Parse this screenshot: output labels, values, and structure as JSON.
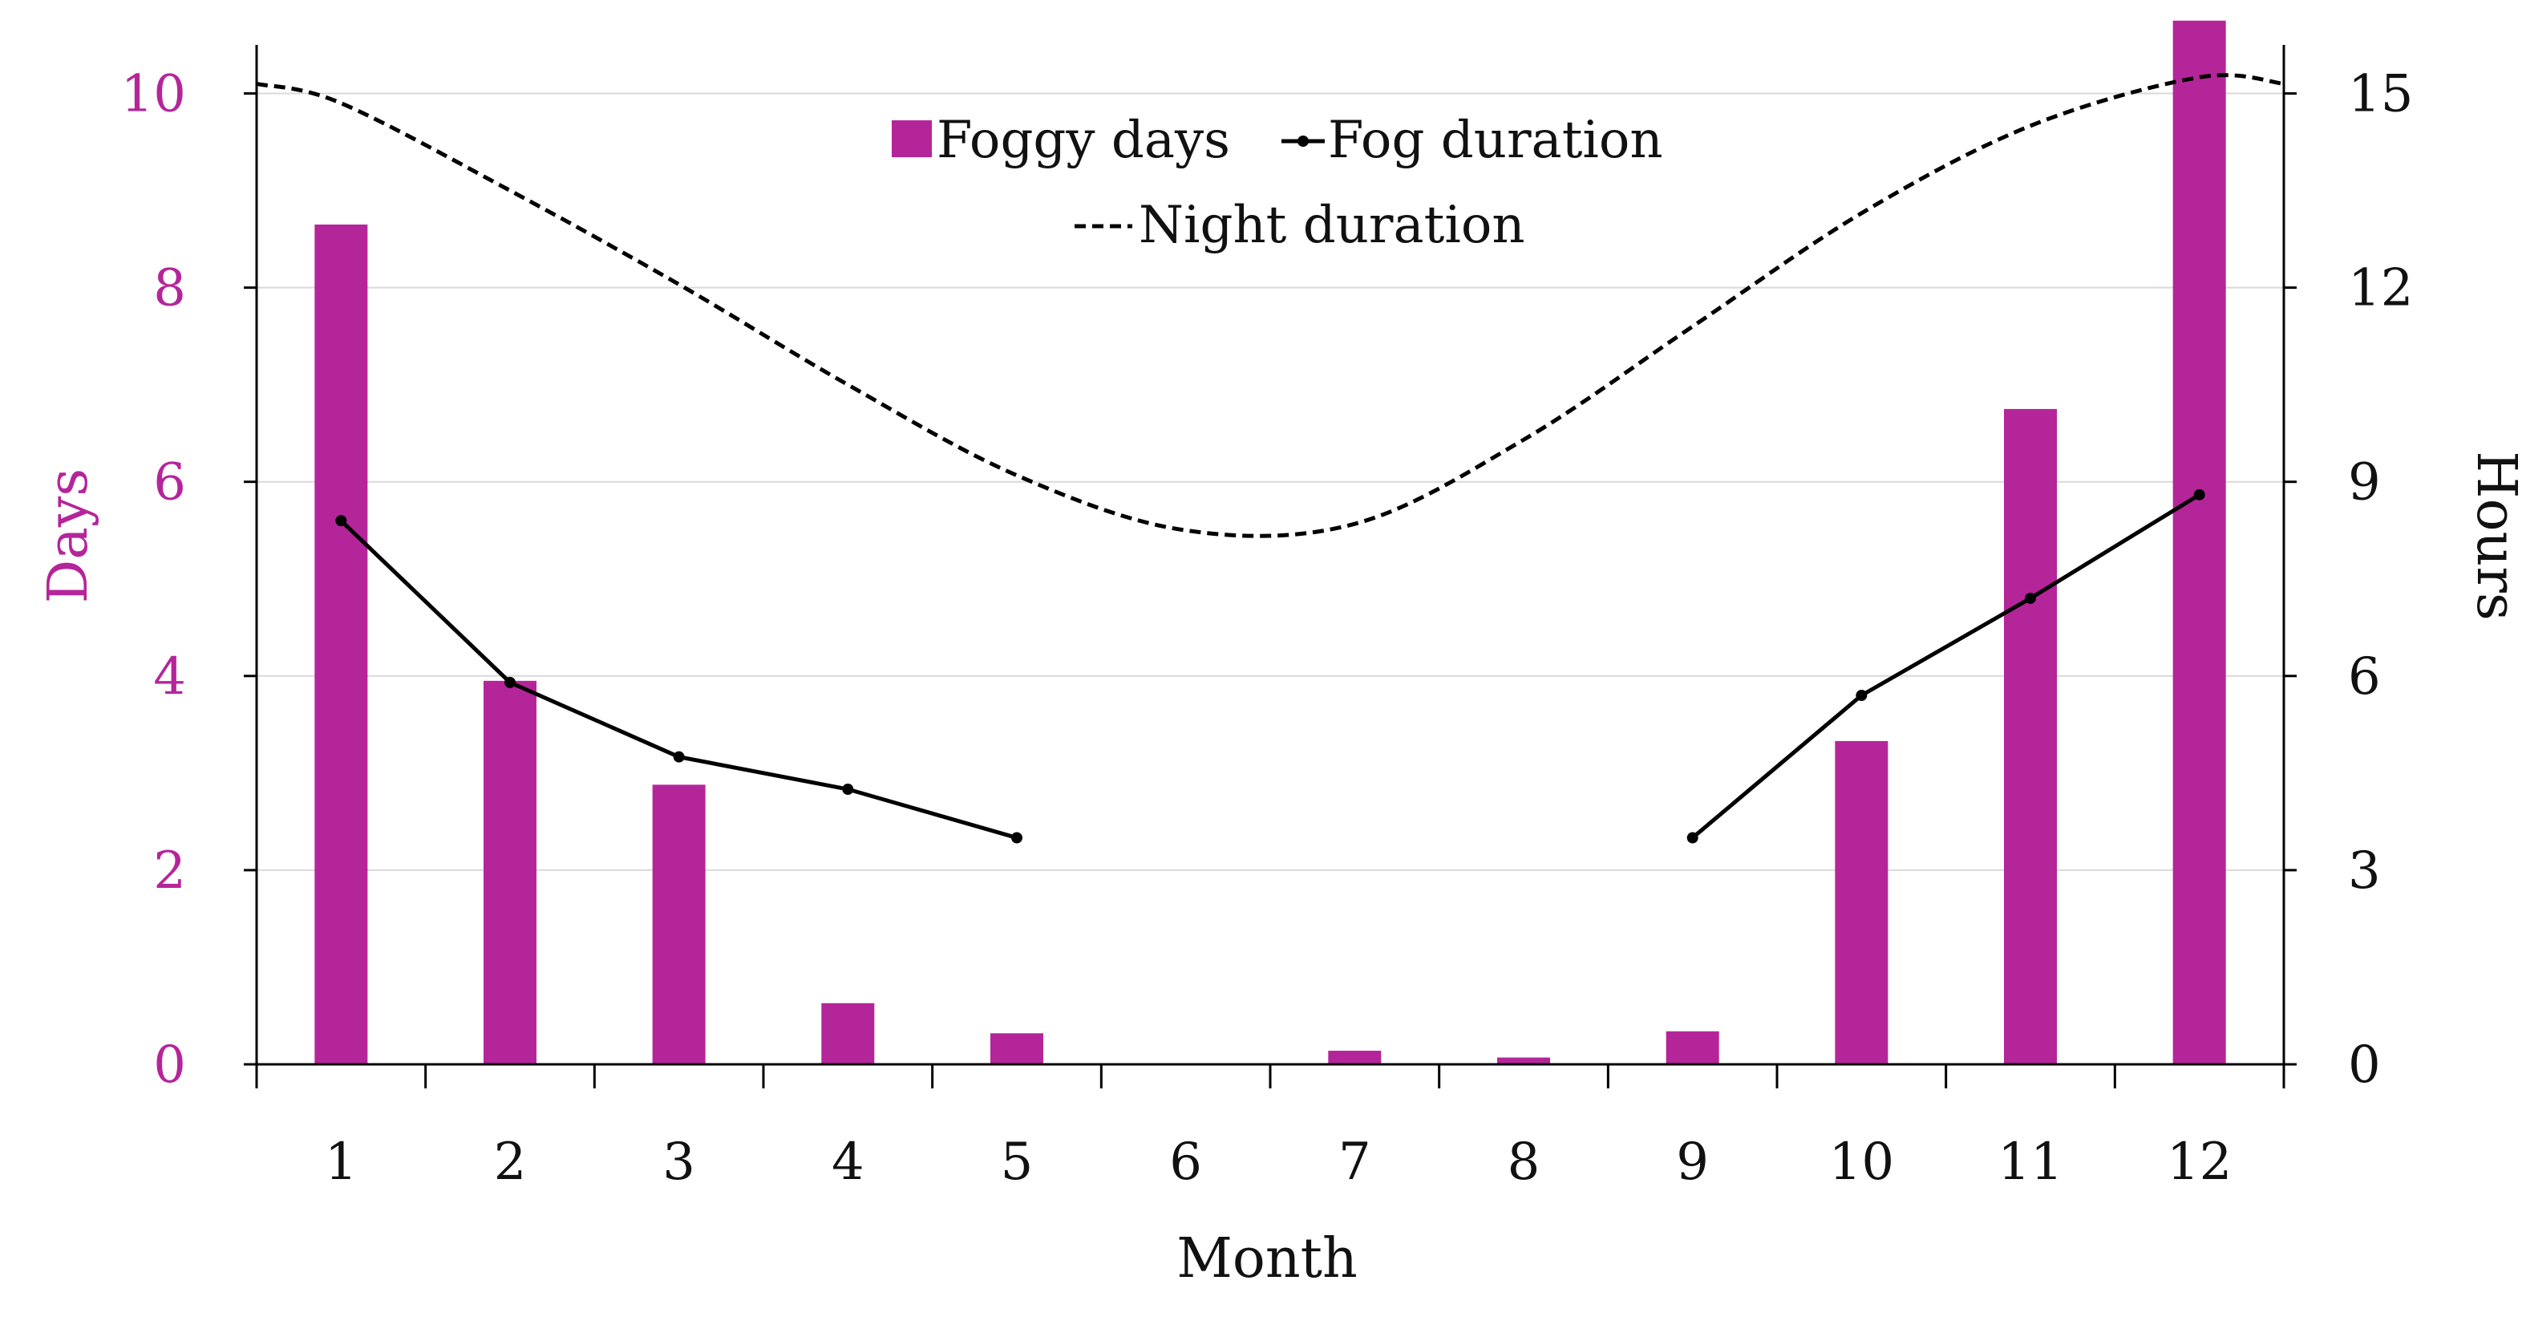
{
  "chart_data": {
    "type": "bar+line",
    "title": "",
    "categories": [
      "1",
      "2",
      "3",
      "4",
      "5",
      "6",
      "7",
      "8",
      "9",
      "10",
      "11",
      "12"
    ],
    "xlabel": "Month",
    "ylabel_left": "Days",
    "ylabel_right": "Hours",
    "ylim_left": [
      0,
      10.5
    ],
    "yticks_left": [
      "0",
      "2",
      "4",
      "6",
      "8",
      "10"
    ],
    "ylim_right": [
      0,
      15.75
    ],
    "yticks_right": [
      "0",
      "3",
      "6",
      "9",
      "12",
      "15"
    ],
    "grid": true,
    "legend_position": "top-center",
    "series": [
      {
        "name": "Foggy days",
        "type": "bar",
        "axis": "left",
        "color": "#b5259a",
        "values": [
          8.65,
          3.95,
          2.88,
          0.63,
          0.32,
          0,
          0.14,
          0.07,
          0.34,
          3.33,
          6.75,
          10.75
        ]
      },
      {
        "name": "Fog duration",
        "type": "line",
        "axis": "right",
        "color": "#000000",
        "style": "solid-markers",
        "values": [
          8.4,
          5.9,
          4.75,
          4.25,
          3.5,
          null,
          null,
          null,
          3.5,
          5.7,
          7.2,
          8.8
        ]
      },
      {
        "name": "Night duration",
        "type": "line",
        "axis": "right",
        "color": "#000000",
        "style": "dashed",
        "x": [
          0.5,
          1,
          2,
          3,
          4,
          5,
          6,
          7,
          8,
          9,
          10,
          11,
          12,
          12.5
        ],
        "values": [
          15.15,
          14.85,
          13.5,
          12.05,
          10.5,
          9.1,
          8.25,
          8.35,
          9.65,
          11.4,
          13.15,
          14.5,
          15.25,
          15.15
        ]
      }
    ]
  },
  "colors": {
    "accent": "#b5259a",
    "axis": "#000000",
    "grid": "#d9d9d9"
  }
}
